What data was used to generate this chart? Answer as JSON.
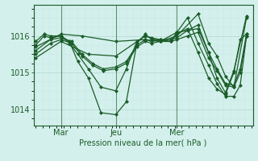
{
  "bg_color": "#d4f0ec",
  "plot_bg_color": "#d4f0ec",
  "grid_color_major": "#b8dbd6",
  "grid_color_minor": "#c8e8e4",
  "line_color": "#1a5c28",
  "xlabel": "Pression niveau de la mer( hPa )",
  "yticks": [
    1014,
    1015,
    1016
  ],
  "ylim": [
    1013.55,
    1016.85
  ],
  "xlim": [
    -0.01,
    1.03
  ],
  "xtick_labels": [
    "Mar",
    "Jeu",
    "Mer"
  ],
  "xtick_positions": [
    0.12,
    0.38,
    0.67
  ],
  "series": [
    [
      0.0,
      1015.85,
      0.04,
      1016.05,
      0.07,
      1016.0,
      0.12,
      1016.0,
      0.16,
      1015.85,
      0.2,
      1015.3,
      0.25,
      1014.85,
      0.31,
      1013.9,
      0.38,
      1013.85,
      0.43,
      1014.2,
      0.48,
      1015.8,
      0.52,
      1016.05,
      0.55,
      1015.9,
      0.59,
      1015.85,
      0.64,
      1015.85,
      0.67,
      1016.05,
      0.72,
      1016.2,
      0.77,
      1015.55,
      0.82,
      1014.85,
      0.86,
      1014.55,
      0.9,
      1014.4,
      0.94,
      1015.0,
      0.97,
      1015.9,
      1.0,
      1016.05
    ],
    [
      0.0,
      1015.75,
      0.04,
      1016.0,
      0.07,
      1015.95,
      0.12,
      1016.0,
      0.16,
      1015.8,
      0.2,
      1015.5,
      0.25,
      1015.1,
      0.31,
      1014.6,
      0.38,
      1014.5,
      0.43,
      1015.1,
      0.48,
      1015.85,
      0.52,
      1016.0,
      0.55,
      1015.95,
      0.59,
      1015.9,
      0.64,
      1015.85,
      0.67,
      1016.1,
      0.72,
      1016.5,
      0.77,
      1015.8,
      0.82,
      1015.2,
      0.86,
      1014.7,
      0.9,
      1014.35,
      0.94,
      1014.35,
      0.97,
      1014.65,
      1.0,
      1016.0
    ],
    [
      0.0,
      1015.6,
      0.07,
      1015.9,
      0.12,
      1015.95,
      0.17,
      1015.85,
      0.22,
      1015.5,
      0.27,
      1015.25,
      0.32,
      1015.1,
      0.38,
      1015.15,
      0.43,
      1015.3,
      0.48,
      1015.75,
      0.52,
      1015.9,
      0.55,
      1015.85,
      0.59,
      1015.9,
      0.64,
      1015.9,
      0.67,
      1015.95,
      0.72,
      1016.15,
      0.77,
      1016.3,
      0.82,
      1015.55,
      0.86,
      1015.1,
      0.9,
      1014.7,
      0.94,
      1014.65,
      0.97,
      1015.1,
      1.0,
      1016.05
    ],
    [
      0.0,
      1015.5,
      0.07,
      1015.8,
      0.12,
      1015.9,
      0.17,
      1015.8,
      0.22,
      1015.45,
      0.27,
      1015.2,
      0.32,
      1015.05,
      0.38,
      1015.1,
      0.43,
      1015.25,
      0.48,
      1015.7,
      0.52,
      1015.85,
      0.55,
      1015.8,
      0.59,
      1015.85,
      0.64,
      1015.85,
      0.67,
      1015.9,
      0.72,
      1016.0,
      0.77,
      1016.1,
      0.82,
      1015.4,
      0.86,
      1015.05,
      0.9,
      1014.65,
      0.94,
      1014.6,
      0.97,
      1015.0,
      1.0,
      1016.0
    ],
    [
      0.0,
      1015.4,
      0.12,
      1015.85,
      0.25,
      1015.5,
      0.38,
      1015.45,
      0.52,
      1016.0,
      0.59,
      1015.85,
      0.67,
      1016.0,
      0.77,
      1016.6,
      0.82,
      1015.8,
      0.86,
      1015.45,
      0.9,
      1014.9,
      0.94,
      1014.6,
      1.0,
      1016.5
    ],
    [
      0.0,
      1015.7,
      0.12,
      1016.05,
      0.22,
      1016.0,
      0.38,
      1015.85,
      0.52,
      1015.9,
      0.59,
      1015.85,
      0.67,
      1016.1,
      0.77,
      1016.2,
      0.82,
      1015.55,
      0.86,
      1014.85,
      0.9,
      1014.45,
      0.94,
      1015.05,
      1.0,
      1016.55
    ]
  ],
  "xlabel_fontsize": 7,
  "ytick_fontsize": 7,
  "xtick_fontsize": 7,
  "linewidth": 0.9,
  "markersize": 2.2
}
